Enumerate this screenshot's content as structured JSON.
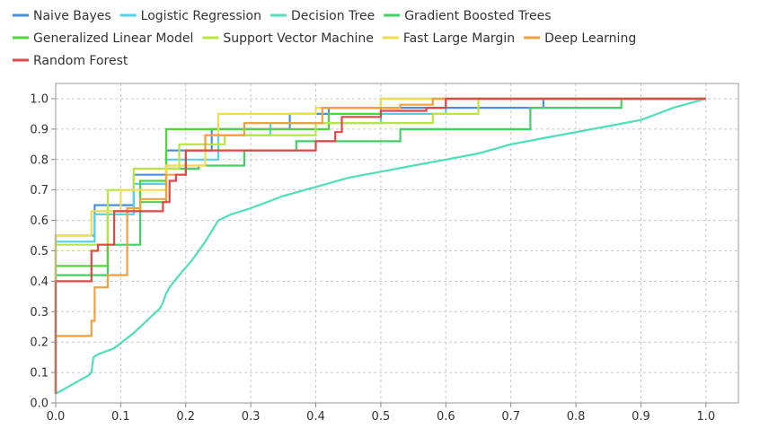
{
  "chart_data": {
    "type": "line",
    "title": "",
    "xlabel": "",
    "ylabel": "",
    "xlim": [
      0,
      1.05
    ],
    "ylim": [
      0,
      1.05
    ],
    "x_ticks": [
      "0.0",
      "0.1",
      "0.2",
      "0.3",
      "0.4",
      "0.5",
      "0.6",
      "0.7",
      "0.8",
      "0.9",
      "1.0"
    ],
    "y_ticks": [
      "0.0",
      "0.1",
      "0.2",
      "0.3",
      "0.4",
      "0.5",
      "0.6",
      "0.7",
      "0.8",
      "0.9",
      "1.0"
    ],
    "grid": true,
    "legend_position": "top",
    "series": [
      {
        "name": "Naive Bayes",
        "color": "#4a90d9",
        "points": [
          [
            0,
            0.03
          ],
          [
            0,
            0.55
          ],
          [
            0.06,
            0.55
          ],
          [
            0.06,
            0.65
          ],
          [
            0.12,
            0.65
          ],
          [
            0.12,
            0.75
          ],
          [
            0.17,
            0.75
          ],
          [
            0.17,
            0.83
          ],
          [
            0.24,
            0.83
          ],
          [
            0.24,
            0.9
          ],
          [
            0.36,
            0.9
          ],
          [
            0.36,
            0.95
          ],
          [
            0.42,
            0.95
          ],
          [
            0.42,
            0.97
          ],
          [
            0.75,
            0.97
          ],
          [
            0.75,
            1.0
          ],
          [
            1.0,
            1.0
          ]
        ]
      },
      {
        "name": "Logistic Regression",
        "color": "#55d0e8",
        "points": [
          [
            0,
            0.03
          ],
          [
            0,
            0.53
          ],
          [
            0.06,
            0.53
          ],
          [
            0.06,
            0.62
          ],
          [
            0.12,
            0.62
          ],
          [
            0.12,
            0.72
          ],
          [
            0.17,
            0.72
          ],
          [
            0.17,
            0.8
          ],
          [
            0.25,
            0.8
          ],
          [
            0.25,
            0.88
          ],
          [
            0.33,
            0.88
          ],
          [
            0.33,
            0.92
          ],
          [
            0.5,
            0.92
          ],
          [
            0.5,
            0.95
          ],
          [
            0.6,
            0.95
          ],
          [
            0.6,
            1.0
          ],
          [
            1.0,
            1.0
          ]
        ]
      },
      {
        "name": "Decision Tree",
        "color": "#4de0b8",
        "points": [
          [
            0,
            0.03
          ],
          [
            0.05,
            0.09
          ],
          [
            0.055,
            0.1
          ],
          [
            0.058,
            0.15
          ],
          [
            0.065,
            0.16
          ],
          [
            0.09,
            0.18
          ],
          [
            0.12,
            0.23
          ],
          [
            0.16,
            0.31
          ],
          [
            0.165,
            0.33
          ],
          [
            0.17,
            0.36
          ],
          [
            0.175,
            0.38
          ],
          [
            0.19,
            0.42
          ],
          [
            0.21,
            0.47
          ],
          [
            0.23,
            0.53
          ],
          [
            0.25,
            0.6
          ],
          [
            0.27,
            0.62
          ],
          [
            0.3,
            0.64
          ],
          [
            0.35,
            0.68
          ],
          [
            0.4,
            0.71
          ],
          [
            0.45,
            0.74
          ],
          [
            0.5,
            0.76
          ],
          [
            0.55,
            0.78
          ],
          [
            0.6,
            0.8
          ],
          [
            0.65,
            0.82
          ],
          [
            0.7,
            0.85
          ],
          [
            0.75,
            0.87
          ],
          [
            0.8,
            0.89
          ],
          [
            0.85,
            0.91
          ],
          [
            0.9,
            0.93
          ],
          [
            0.95,
            0.97
          ],
          [
            1.0,
            1.0
          ]
        ]
      },
      {
        "name": "Gradient Boosted Trees",
        "color": "#45d065",
        "points": [
          [
            0,
            0.03
          ],
          [
            0,
            0.42
          ],
          [
            0.08,
            0.42
          ],
          [
            0.08,
            0.52
          ],
          [
            0.13,
            0.52
          ],
          [
            0.13,
            0.66
          ],
          [
            0.17,
            0.66
          ],
          [
            0.17,
            0.77
          ],
          [
            0.22,
            0.77
          ],
          [
            0.22,
            0.78
          ],
          [
            0.29,
            0.78
          ],
          [
            0.29,
            0.83
          ],
          [
            0.37,
            0.83
          ],
          [
            0.37,
            0.86
          ],
          [
            0.53,
            0.86
          ],
          [
            0.53,
            0.9
          ],
          [
            0.73,
            0.9
          ],
          [
            0.73,
            0.97
          ],
          [
            0.87,
            0.97
          ],
          [
            0.87,
            1.0
          ],
          [
            1.0,
            1.0
          ]
        ]
      },
      {
        "name": "Generalized Linear Model",
        "color": "#52d43a",
        "points": [
          [
            0,
            0.03
          ],
          [
            0,
            0.45
          ],
          [
            0.08,
            0.45
          ],
          [
            0.08,
            0.63
          ],
          [
            0.13,
            0.63
          ],
          [
            0.13,
            0.73
          ],
          [
            0.17,
            0.73
          ],
          [
            0.17,
            0.9
          ],
          [
            0.42,
            0.9
          ],
          [
            0.42,
            0.95
          ],
          [
            0.5,
            0.95
          ],
          [
            0.5,
            1.0
          ],
          [
            1.0,
            1.0
          ]
        ]
      },
      {
        "name": "Support Vector Machine",
        "color": "#b8e640",
        "points": [
          [
            0,
            0.03
          ],
          [
            0,
            0.52
          ],
          [
            0.08,
            0.52
          ],
          [
            0.08,
            0.7
          ],
          [
            0.12,
            0.7
          ],
          [
            0.12,
            0.77
          ],
          [
            0.19,
            0.77
          ],
          [
            0.19,
            0.85
          ],
          [
            0.26,
            0.85
          ],
          [
            0.26,
            0.88
          ],
          [
            0.4,
            0.88
          ],
          [
            0.4,
            0.92
          ],
          [
            0.58,
            0.92
          ],
          [
            0.58,
            0.95
          ],
          [
            0.65,
            0.95
          ],
          [
            0.65,
            1.0
          ],
          [
            1.0,
            1.0
          ]
        ]
      },
      {
        "name": "Fast Large Margin",
        "color": "#f0dc50",
        "points": [
          [
            0,
            0.03
          ],
          [
            0,
            0.55
          ],
          [
            0.055,
            0.55
          ],
          [
            0.055,
            0.63
          ],
          [
            0.1,
            0.63
          ],
          [
            0.1,
            0.7
          ],
          [
            0.17,
            0.7
          ],
          [
            0.17,
            0.78
          ],
          [
            0.23,
            0.78
          ],
          [
            0.23,
            0.88
          ],
          [
            0.25,
            0.88
          ],
          [
            0.25,
            0.95
          ],
          [
            0.4,
            0.95
          ],
          [
            0.4,
            0.97
          ],
          [
            0.5,
            0.97
          ],
          [
            0.5,
            1.0
          ],
          [
            1.0,
            1.0
          ]
        ]
      },
      {
        "name": "Deep Learning",
        "color": "#f0a040",
        "points": [
          [
            0,
            0.03
          ],
          [
            0,
            0.22
          ],
          [
            0.055,
            0.22
          ],
          [
            0.055,
            0.27
          ],
          [
            0.06,
            0.27
          ],
          [
            0.06,
            0.38
          ],
          [
            0.08,
            0.38
          ],
          [
            0.08,
            0.42
          ],
          [
            0.11,
            0.42
          ],
          [
            0.11,
            0.64
          ],
          [
            0.13,
            0.64
          ],
          [
            0.13,
            0.67
          ],
          [
            0.17,
            0.67
          ],
          [
            0.17,
            0.75
          ],
          [
            0.2,
            0.75
          ],
          [
            0.2,
            0.83
          ],
          [
            0.23,
            0.83
          ],
          [
            0.23,
            0.88
          ],
          [
            0.29,
            0.88
          ],
          [
            0.29,
            0.92
          ],
          [
            0.41,
            0.92
          ],
          [
            0.41,
            0.97
          ],
          [
            0.53,
            0.97
          ],
          [
            0.53,
            0.98
          ],
          [
            0.58,
            0.98
          ],
          [
            0.58,
            1.0
          ],
          [
            1.0,
            1.0
          ]
        ]
      },
      {
        "name": "Random Forest",
        "color": "#e04848",
        "points": [
          [
            0,
            0.03
          ],
          [
            0,
            0.4
          ],
          [
            0.055,
            0.4
          ],
          [
            0.055,
            0.5
          ],
          [
            0.065,
            0.5
          ],
          [
            0.065,
            0.52
          ],
          [
            0.09,
            0.52
          ],
          [
            0.09,
            0.63
          ],
          [
            0.165,
            0.63
          ],
          [
            0.165,
            0.66
          ],
          [
            0.175,
            0.66
          ],
          [
            0.175,
            0.73
          ],
          [
            0.185,
            0.73
          ],
          [
            0.185,
            0.75
          ],
          [
            0.2,
            0.75
          ],
          [
            0.2,
            0.83
          ],
          [
            0.4,
            0.83
          ],
          [
            0.4,
            0.86
          ],
          [
            0.43,
            0.86
          ],
          [
            0.43,
            0.89
          ],
          [
            0.44,
            0.89
          ],
          [
            0.44,
            0.94
          ],
          [
            0.5,
            0.94
          ],
          [
            0.5,
            0.96
          ],
          [
            0.57,
            0.96
          ],
          [
            0.57,
            0.97
          ],
          [
            0.6,
            0.97
          ],
          [
            0.6,
            1.0
          ],
          [
            1.0,
            1.0
          ]
        ]
      }
    ]
  }
}
